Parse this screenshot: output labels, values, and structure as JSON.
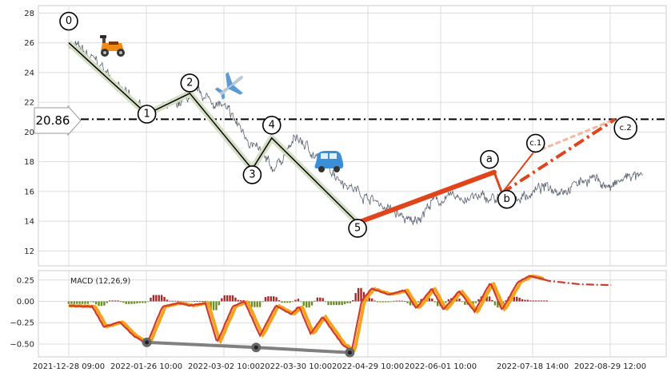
{
  "chart_data": [
    {
      "type": "line",
      "panel": "price",
      "ylim": [
        11,
        28.5
      ],
      "yticks": [
        12,
        14,
        16,
        18,
        20,
        22,
        24,
        26,
        28
      ],
      "x_ticks": [
        "2021-12-28 09:00",
        "2022-01-26 10:00",
        "2022-03-02 10:00",
        "2022-03-30 10:00",
        "2022-04-29 10:00",
        "2022-06-01 10:00",
        "2022-07-18 14:00",
        "2022-08-29 12:00"
      ],
      "price_anchors": [
        {
          "t": 0,
          "v": 26.0
        },
        {
          "t": 8,
          "v": 25.3
        },
        {
          "t": 18,
          "v": 24.2
        },
        {
          "t": 30,
          "v": 22.4
        },
        {
          "t": 40,
          "v": 21.2
        },
        {
          "t": 52,
          "v": 21.6
        },
        {
          "t": 66,
          "v": 22.6
        },
        {
          "t": 78,
          "v": 21.8
        },
        {
          "t": 92,
          "v": 19.6
        },
        {
          "t": 104,
          "v": 17.4
        },
        {
          "t": 117,
          "v": 19.6
        },
        {
          "t": 130,
          "v": 18.0
        },
        {
          "t": 146,
          "v": 16.2
        },
        {
          "t": 162,
          "v": 15.0
        },
        {
          "t": 176,
          "v": 13.8
        },
        {
          "t": 186,
          "v": 15.3
        },
        {
          "t": 200,
          "v": 15.6
        },
        {
          "t": 214,
          "v": 15.5
        },
        {
          "t": 228,
          "v": 15.4
        },
        {
          "t": 242,
          "v": 16.2
        },
        {
          "t": 256,
          "v": 16.3
        },
        {
          "t": 268,
          "v": 17.0
        },
        {
          "t": 278,
          "v": 16.2
        },
        {
          "t": 288,
          "v": 17.1
        },
        {
          "t": 294,
          "v": 16.8
        }
      ],
      "elliott_wave": {
        "impulse": [
          {
            "label": "0",
            "t": 0,
            "v": 26.0
          },
          {
            "label": "1",
            "t": 40,
            "v": 21.2
          },
          {
            "label": "2",
            "t": 62,
            "v": 22.6
          },
          {
            "label": "3",
            "t": 94,
            "v": 17.5
          },
          {
            "label": "4",
            "t": 104,
            "v": 19.6
          },
          {
            "label": "5",
            "t": 148,
            "v": 13.9
          }
        ],
        "correction": [
          {
            "label": "5",
            "t": 148,
            "v": 13.9
          },
          {
            "label": "a",
            "t": 218,
            "v": 17.3
          },
          {
            "label": "b",
            "t": 222,
            "v": 15.9
          },
          {
            "label": "c.1",
            "t": 238,
            "v": 18.6
          }
        ],
        "projection_c2": {
          "label": "c.2",
          "t": 280,
          "v": 20.86
        }
      },
      "level_line": {
        "value": 20.86,
        "label": "20.86"
      },
      "icons": [
        "scooter-icon",
        "airplane-icon",
        "car-icon"
      ]
    },
    {
      "type": "line",
      "panel": "macd",
      "title": "MACD (12,26,9)",
      "ylim": [
        -0.65,
        0.36
      ],
      "yticks": [
        0.25,
        0.0,
        -0.25,
        -0.5
      ],
      "ytick_labels": [
        "0.25",
        "0.00",
        "−0.25",
        "−0.50"
      ],
      "macd_anchors": [
        {
          "t": 0,
          "v": -0.05
        },
        {
          "t": 12,
          "v": -0.06
        },
        {
          "t": 18,
          "v": -0.3
        },
        {
          "t": 26,
          "v": -0.24
        },
        {
          "t": 33,
          "v": -0.4
        },
        {
          "t": 40,
          "v": -0.5
        },
        {
          "t": 48,
          "v": -0.06
        },
        {
          "t": 56,
          "v": -0.02
        },
        {
          "t": 62,
          "v": -0.05
        },
        {
          "t": 70,
          "v": -0.02
        },
        {
          "t": 76,
          "v": -0.48
        },
        {
          "t": 84,
          "v": -0.06
        },
        {
          "t": 90,
          "v": 0.0
        },
        {
          "t": 98,
          "v": -0.4
        },
        {
          "t": 106,
          "v": -0.05
        },
        {
          "t": 114,
          "v": -0.15
        },
        {
          "t": 118,
          "v": -0.06
        },
        {
          "t": 124,
          "v": -0.38
        },
        {
          "t": 130,
          "v": -0.18
        },
        {
          "t": 140,
          "v": -0.5
        },
        {
          "t": 145,
          "v": -0.58
        },
        {
          "t": 150,
          "v": 0.0
        },
        {
          "t": 155,
          "v": 0.15
        },
        {
          "t": 164,
          "v": 0.08
        },
        {
          "t": 172,
          "v": 0.13
        },
        {
          "t": 178,
          "v": -0.08
        },
        {
          "t": 186,
          "v": 0.15
        },
        {
          "t": 192,
          "v": -0.1
        },
        {
          "t": 200,
          "v": 0.12
        },
        {
          "t": 208,
          "v": -0.12
        },
        {
          "t": 216,
          "v": 0.22
        },
        {
          "t": 222,
          "v": -0.1
        },
        {
          "t": 230,
          "v": 0.22
        },
        {
          "t": 236,
          "v": 0.3
        },
        {
          "t": 246,
          "v": 0.24
        },
        {
          "t": 262,
          "v": 0.2
        },
        {
          "t": 278,
          "v": 0.19
        }
      ],
      "divergence_points": [
        {
          "t": 40,
          "v": -0.48
        },
        {
          "t": 96,
          "v": -0.54
        },
        {
          "t": 144,
          "v": -0.6
        }
      ]
    }
  ],
  "colors": {
    "price": "#5a6270",
    "impulse": "#000000",
    "impulse_halo": "#d4dfc2",
    "correction": "#e0441a",
    "correction_light": "#f4b8a0",
    "macd_line": "#d03a2c",
    "macd_halo": "#f5a21c",
    "hist_pos": "#a52a2a",
    "hist_neg": "#6b8e23",
    "divergence": "#808080",
    "grid": "#dcdcdc"
  }
}
